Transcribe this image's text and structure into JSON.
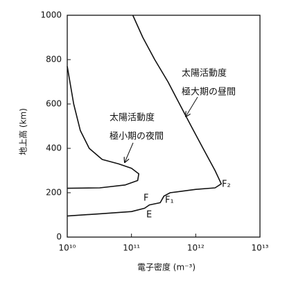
{
  "chart_data": {
    "type": "line",
    "xlabel": "電子密度 (m⁻³)",
    "ylabel": "地上高 (km)",
    "xscale": "log",
    "grid": false,
    "xlim": [
      10000000000.0,
      10000000000000.0
    ],
    "xticks": [
      {
        "value": 10000000000.0,
        "label": "10¹⁰"
      },
      {
        "value": 100000000000.0,
        "label": "10¹¹"
      },
      {
        "value": 1000000000000.0,
        "label": "10¹²"
      },
      {
        "value": 10000000000000.0,
        "label": "10¹³"
      }
    ],
    "ylim": [
      0,
      1000
    ],
    "yticks": [
      0,
      200,
      400,
      600,
      800,
      1000
    ],
    "series": [
      {
        "color": "#111111",
        "x": [
          10000000000.0,
          32000000000.0,
          100000000000.0,
          160000000000.0,
          190000000000.0,
          280000000000.0,
          320000000000.0,
          400000000000.0,
          1000000000000.0,
          2000000000000.0,
          2500000000000.0,
          2000000000000.0,
          1300000000000.0,
          850000000000.0,
          560000000000.0,
          370000000000.0,
          230000000000.0,
          150000000000.0,
          105000000000.0
        ],
        "values": [
          95,
          105,
          115,
          130,
          145,
          155,
          185,
          200,
          215,
          222,
          240,
          300,
          400,
          500,
          600,
          700,
          800,
          900,
          1000
        ]
      },
      {
        "color": "#111111",
        "x": [
          10000000000.0,
          12600000000.0,
          16000000000.0,
          22000000000.0,
          35000000000.0,
          63000000000.0,
          100000000000.0,
          130000000000.0,
          125000000000.0,
          80000000000.0,
          32000000000.0,
          10000000000.0
        ],
        "values": [
          770,
          600,
          480,
          400,
          350,
          330,
          310,
          285,
          255,
          235,
          222,
          220
        ]
      }
    ],
    "annotations": [
      {
        "lines": [
          "太陽活動度",
          "極大期の昼間"
        ]
      },
      {
        "lines": [
          "太陽活動度",
          "極小期の夜間"
        ]
      },
      {
        "text": "F"
      },
      {
        "text": "F₂"
      },
      {
        "text": "F₁"
      },
      {
        "text": "E"
      }
    ]
  }
}
